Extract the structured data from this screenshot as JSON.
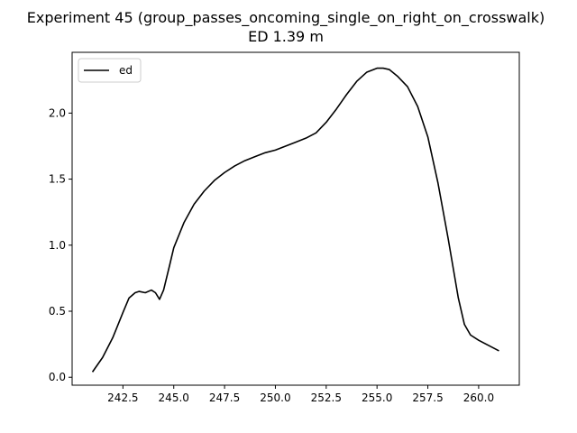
{
  "chart_data": {
    "type": "line",
    "title": "Experiment 45 (group_passes_oncoming_single_on_right_on_crosswalk)",
    "subtitle": "ED 1.39 m",
    "xlabel": "",
    "ylabel": "",
    "xlim": [
      240.0,
      262.0
    ],
    "ylim": [
      -0.06,
      2.46
    ],
    "x_ticks": [
      242.5,
      245.0,
      247.5,
      250.0,
      252.5,
      255.0,
      257.5,
      260.0
    ],
    "x_tick_labels": [
      "242.5",
      "245.0",
      "247.5",
      "250.0",
      "252.5",
      "255.0",
      "257.5",
      "260.0"
    ],
    "y_ticks": [
      0.0,
      0.5,
      1.0,
      1.5,
      2.0
    ],
    "y_tick_labels": [
      "0.0",
      "0.5",
      "1.0",
      "1.5",
      "2.0"
    ],
    "grid": false,
    "legend_position": "top-left",
    "series": [
      {
        "name": "ed",
        "color": "#000000",
        "x": [
          241.0,
          241.5,
          242.0,
          242.5,
          242.8,
          243.1,
          243.3,
          243.6,
          243.9,
          244.1,
          244.3,
          244.5,
          244.8,
          245.0,
          245.5,
          246.0,
          246.5,
          247.0,
          247.5,
          248.0,
          248.5,
          249.0,
          249.5,
          250.0,
          250.5,
          251.0,
          251.5,
          252.0,
          252.5,
          253.0,
          253.5,
          254.0,
          254.5,
          255.0,
          255.3,
          255.6,
          256.0,
          256.5,
          257.0,
          257.5,
          258.0,
          258.5,
          259.0,
          259.3,
          259.6,
          260.0,
          260.5,
          261.0
        ],
        "values": [
          0.04,
          0.15,
          0.3,
          0.49,
          0.6,
          0.64,
          0.65,
          0.64,
          0.66,
          0.64,
          0.59,
          0.66,
          0.85,
          0.98,
          1.17,
          1.31,
          1.41,
          1.49,
          1.55,
          1.6,
          1.64,
          1.67,
          1.7,
          1.72,
          1.75,
          1.78,
          1.81,
          1.85,
          1.93,
          2.03,
          2.14,
          2.24,
          2.31,
          2.34,
          2.34,
          2.33,
          2.28,
          2.2,
          2.05,
          1.82,
          1.47,
          1.05,
          0.6,
          0.4,
          0.32,
          0.28,
          0.24,
          0.2
        ]
      }
    ]
  }
}
